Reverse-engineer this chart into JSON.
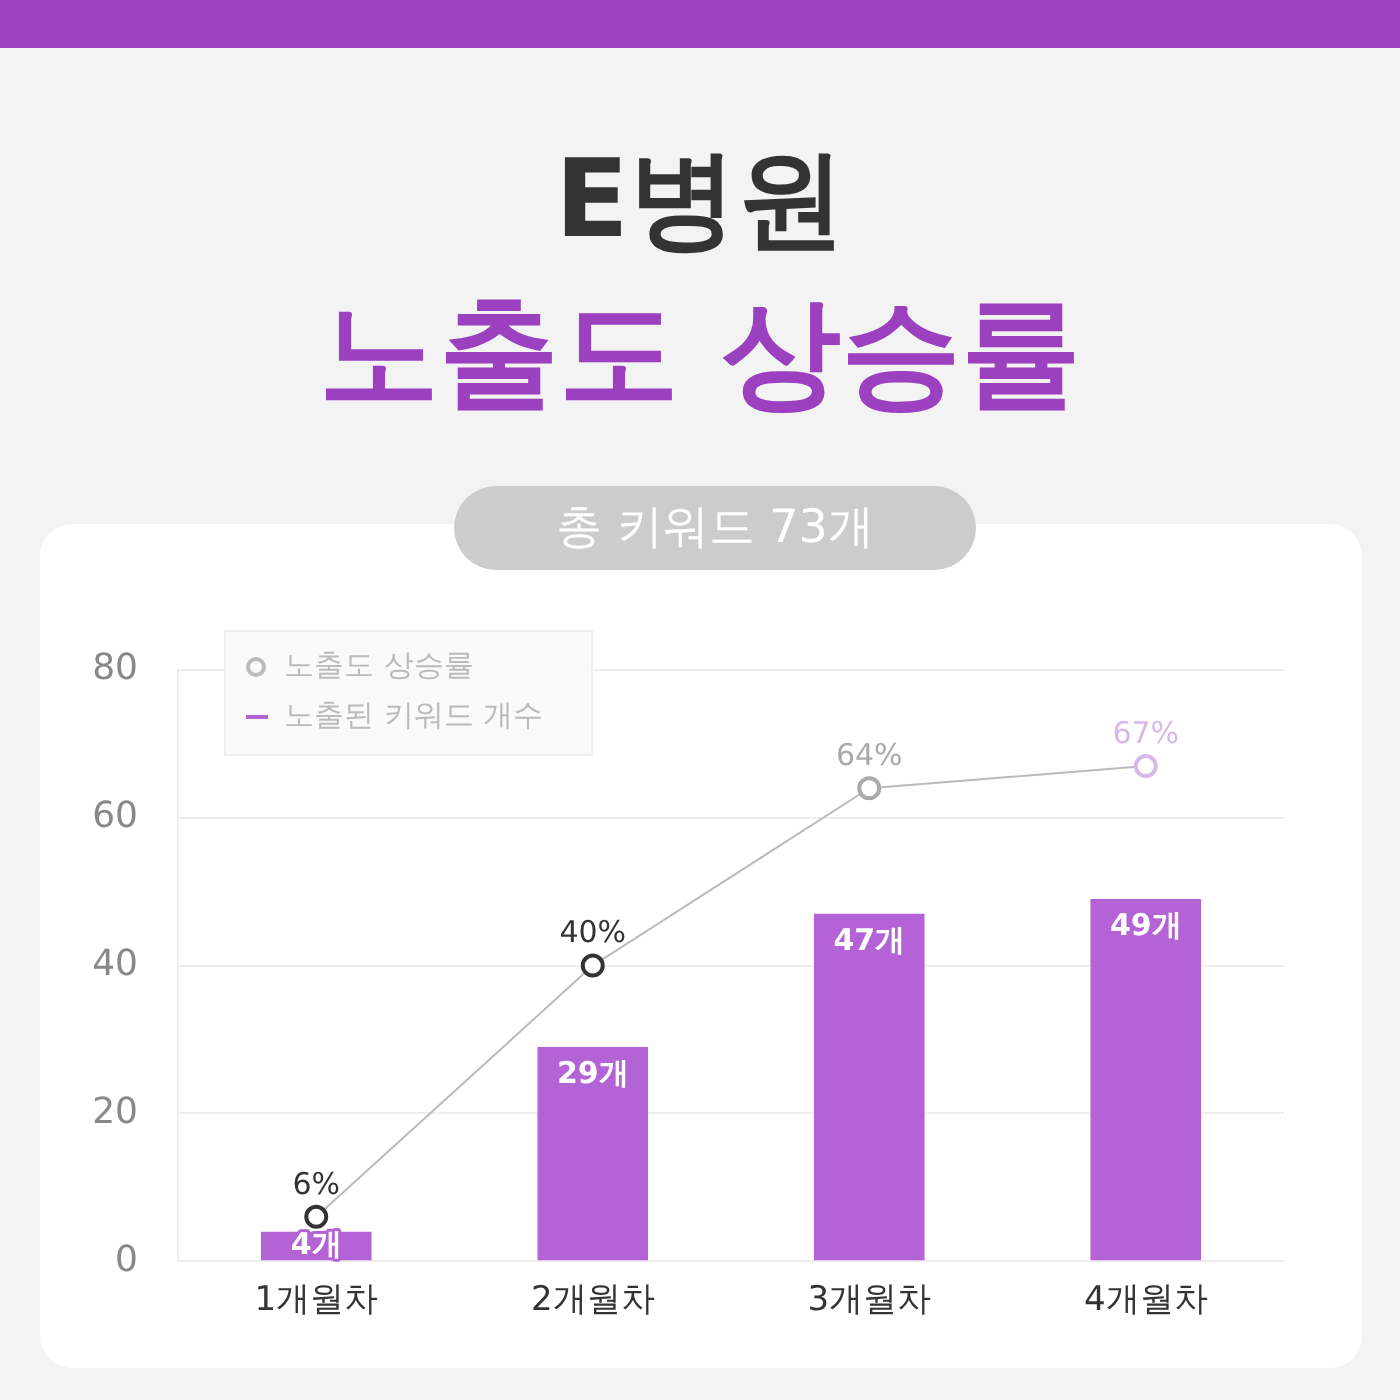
{
  "chart_data": {
    "type": "bar",
    "title": "E병원",
    "subtitle": "노출도 상승률",
    "annotations": [
      "총 키워드 73개"
    ],
    "categories": [
      "1개월차",
      "2개월차",
      "3개월차",
      "4개월차"
    ],
    "series": [
      {
        "name": "노출도 상승률",
        "type": "line",
        "color": "#bbbbbb",
        "colors": [
          "#333333",
          "#333333",
          "#aaaaaa",
          "#d8b8e8"
        ],
        "values": [
          6,
          40,
          64,
          67
        ],
        "value_labels": [
          "6%",
          "40%",
          "64%",
          "67%"
        ]
      },
      {
        "name": "노출된 키워드 개수",
        "color": "#b463d6",
        "values": [
          4,
          29,
          47,
          49
        ],
        "value_labels": [
          "4개",
          "29개",
          "47개",
          "49개"
        ]
      }
    ],
    "ylim": [
      0,
      80
    ],
    "yticks": [
      0,
      20,
      40,
      60,
      80
    ],
    "grid": "y",
    "legend": "top left",
    "marker": "circle"
  }
}
